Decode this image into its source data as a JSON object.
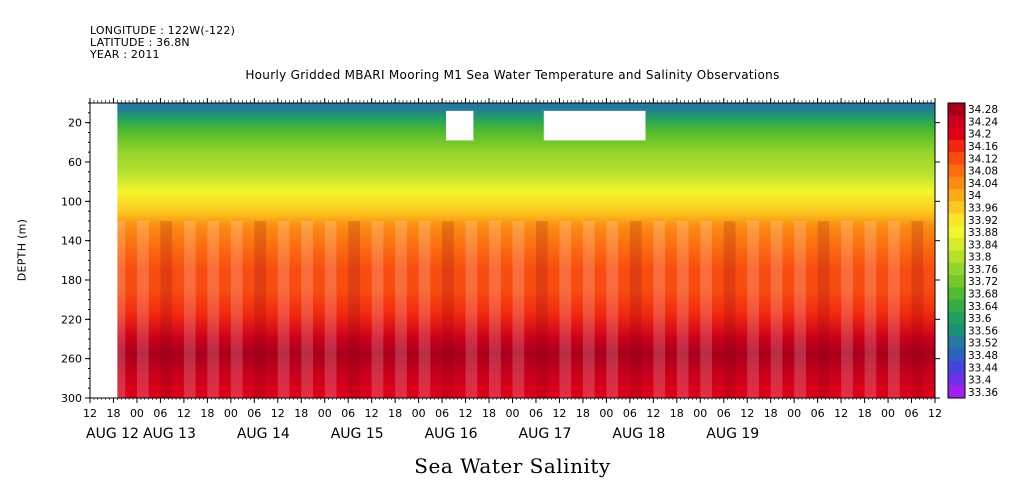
{
  "header": {
    "longitude": "LONGITUDE : 122W(-122)",
    "latitude": "LATITUDE : 36.8N",
    "year": "YEAR : 2011"
  },
  "chart_data": {
    "type": "heatmap",
    "title": "Hourly Gridded MBARI Mooring M1 Sea Water Temperature and Salinity Observations",
    "subtitle": "Sea Water Salinity",
    "ylabel": "DEPTH (m)",
    "xlabel": "",
    "x_range_hours": [
      12,
      228
    ],
    "ylim": [
      300,
      0
    ],
    "y_inverted": true,
    "yticks": [
      20,
      60,
      100,
      140,
      180,
      220,
      260,
      300
    ],
    "xtick_hour_labels": [
      "12",
      "18",
      "00",
      "06",
      "12",
      "18",
      "00",
      "06",
      "12",
      "18",
      "00",
      "06",
      "12",
      "18",
      "00",
      "06",
      "12",
      "18",
      "00",
      "06",
      "12",
      "18",
      "00",
      "06",
      "12",
      "18",
      "00",
      "06",
      "12",
      "18",
      "00",
      "06",
      "12",
      "18",
      "00",
      "06",
      "12"
    ],
    "xtick_date_labels": [
      "AUG 12",
      "AUG 13",
      "AUG 14",
      "AUG 15",
      "AUG 16",
      "AUG 17",
      "AUG 18",
      "AUG 19"
    ],
    "colorbar": {
      "levels": [
        "34.28",
        "34.24",
        "34.2",
        "34.16",
        "34.12",
        "34.08",
        "34.04",
        "34",
        "33.96",
        "33.92",
        "33.88",
        "33.84",
        "33.8",
        "33.76",
        "33.72",
        "33.68",
        "33.64",
        "33.6",
        "33.56",
        "33.52",
        "33.48",
        "33.44",
        "33.4",
        "33.36"
      ],
      "colors": [
        "#a8001c",
        "#c8001c",
        "#e00018",
        "#f02810",
        "#f84c10",
        "#fc6e10",
        "#fc8c14",
        "#fcaa18",
        "#fcc820",
        "#fce42a",
        "#f4f42c",
        "#d4ec2c",
        "#b4e02c",
        "#94d42c",
        "#74c82c",
        "#54bc2c",
        "#34ac40",
        "#20a060",
        "#1c9078",
        "#2478a0",
        "#3060c0",
        "#4444dc",
        "#7030e8",
        "#a020f0"
      ]
    },
    "depth_profile": [
      {
        "depth": 5,
        "salinity": 33.52
      },
      {
        "depth": 15,
        "salinity": 33.58
      },
      {
        "depth": 30,
        "salinity": 33.66
      },
      {
        "depth": 50,
        "salinity": 33.74
      },
      {
        "depth": 70,
        "salinity": 33.8
      },
      {
        "depth": 90,
        "salinity": 33.88
      },
      {
        "depth": 110,
        "salinity": 33.96
      },
      {
        "depth": 125,
        "salinity": 34.02
      },
      {
        "depth": 145,
        "salinity": 34.08
      },
      {
        "depth": 170,
        "salinity": 34.1
      },
      {
        "depth": 190,
        "salinity": 34.12
      },
      {
        "depth": 215,
        "salinity": 34.17
      },
      {
        "depth": 240,
        "salinity": 34.22
      },
      {
        "depth": 255,
        "salinity": 34.26
      },
      {
        "depth": 275,
        "salinity": 34.22
      },
      {
        "depth": 300,
        "salinity": 34.19
      }
    ],
    "missing_data_blocks": [
      {
        "x_hours": [
          12,
          19
        ],
        "depth": [
          0,
          300
        ]
      },
      {
        "x_hours": [
          103,
          110
        ],
        "depth": [
          8,
          38
        ]
      },
      {
        "x_hours": [
          128,
          154
        ],
        "depth": [
          8,
          38
        ]
      }
    ]
  }
}
